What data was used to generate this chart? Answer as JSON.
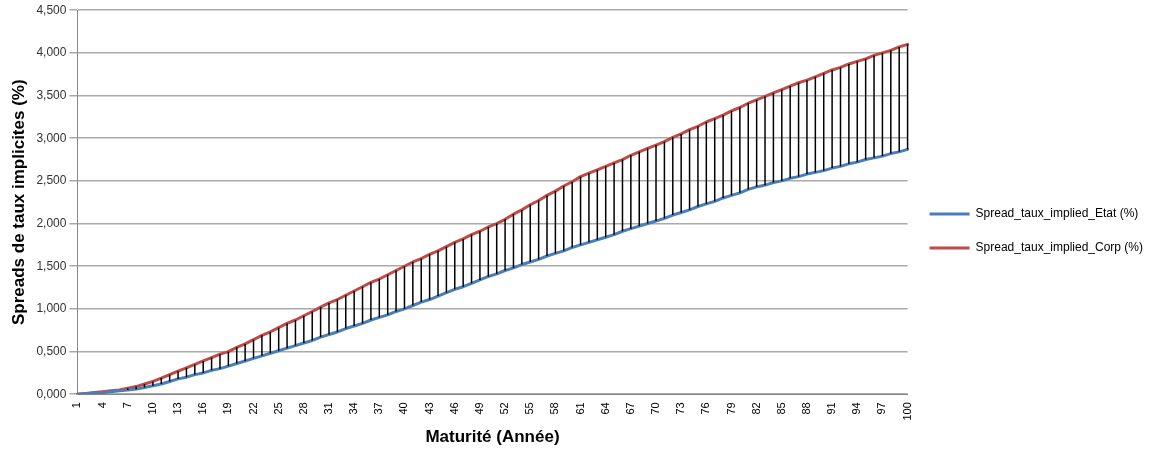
{
  "chart_data": {
    "type": "line",
    "xlabel": "Maturité (Année)",
    "ylabel": "Spreads de taux implicites (%)",
    "categories": [
      "1",
      null,
      null,
      "4",
      null,
      null,
      "7",
      null,
      null,
      "10",
      null,
      null,
      "13",
      null,
      null,
      "16",
      null,
      null,
      "19",
      null,
      null,
      "22",
      null,
      null,
      "25",
      null,
      null,
      "28",
      null,
      null,
      "31",
      null,
      null,
      "34",
      null,
      null,
      "37",
      null,
      null,
      "40",
      null,
      null,
      "43",
      null,
      null,
      "46",
      null,
      null,
      "49",
      null,
      null,
      "52",
      null,
      null,
      "55",
      null,
      null,
      "58",
      null,
      null,
      "61",
      null,
      null,
      "64",
      null,
      null,
      "67",
      null,
      null,
      "70",
      null,
      null,
      "73",
      null,
      null,
      "76",
      null,
      null,
      "79",
      null,
      null,
      "82",
      null,
      null,
      "85",
      null,
      null,
      "88",
      null,
      null,
      "91",
      null,
      null,
      "94",
      null,
      null,
      "97",
      null,
      null,
      "100"
    ],
    "series": [
      {
        "name": "Spread_taux_implied_Etat (%)",
        "color": "#4a7ebb",
        "values": [
          0,
          0.01,
          0.01,
          0.02,
          0.03,
          0.04,
          0.05,
          0.06,
          0.08,
          0.1,
          0.12,
          0.15,
          0.18,
          0.2,
          0.23,
          0.25,
          0.28,
          0.3,
          0.33,
          0.36,
          0.39,
          0.42,
          0.45,
          0.48,
          0.51,
          0.54,
          0.57,
          0.6,
          0.63,
          0.67,
          0.7,
          0.73,
          0.77,
          0.8,
          0.83,
          0.87,
          0.9,
          0.93,
          0.97,
          1.0,
          1.04,
          1.08,
          1.11,
          1.15,
          1.19,
          1.23,
          1.26,
          1.3,
          1.34,
          1.38,
          1.41,
          1.45,
          1.48,
          1.52,
          1.55,
          1.58,
          1.62,
          1.65,
          1.68,
          1.72,
          1.75,
          1.78,
          1.81,
          1.84,
          1.87,
          1.91,
          1.94,
          1.97,
          2.0,
          2.03,
          2.06,
          2.1,
          2.13,
          2.16,
          2.2,
          2.23,
          2.26,
          2.3,
          2.33,
          2.36,
          2.4,
          2.43,
          2.45,
          2.48,
          2.5,
          2.53,
          2.55,
          2.58,
          2.6,
          2.62,
          2.65,
          2.67,
          2.7,
          2.72,
          2.75,
          2.77,
          2.79,
          2.82,
          2.84,
          2.87
        ],
        "errors": [
          null,
          null,
          null,
          null,
          null,
          null,
          [
            0.05,
            0.07
          ],
          [
            0.06,
            0.09
          ],
          [
            0.08,
            0.12
          ],
          [
            0.1,
            0.15
          ],
          [
            0.12,
            0.19
          ],
          [
            0.15,
            0.23
          ],
          [
            0.18,
            0.27
          ],
          [
            0.2,
            0.31
          ],
          [
            0.23,
            0.35
          ],
          [
            0.25,
            0.39
          ],
          [
            0.28,
            0.43
          ],
          [
            0.3,
            0.47
          ],
          [
            0.33,
            0.5
          ],
          [
            0.36,
            0.55
          ],
          [
            0.39,
            0.59
          ],
          [
            0.42,
            0.64
          ],
          [
            0.45,
            0.69
          ],
          [
            0.48,
            0.73
          ],
          [
            0.51,
            0.78
          ],
          [
            0.54,
            0.83
          ],
          [
            0.57,
            0.87
          ],
          [
            0.6,
            0.92
          ],
          [
            0.63,
            0.97
          ],
          [
            0.67,
            1.02
          ],
          [
            0.7,
            1.07
          ],
          [
            0.73,
            1.11
          ],
          [
            0.77,
            1.16
          ],
          [
            0.8,
            1.21
          ],
          [
            0.83,
            1.26
          ],
          [
            0.87,
            1.31
          ],
          [
            0.9,
            1.35
          ],
          [
            0.93,
            1.4
          ],
          [
            0.97,
            1.45
          ],
          [
            1.0,
            1.5
          ],
          [
            1.04,
            1.55
          ],
          [
            1.08,
            1.59
          ],
          [
            1.11,
            1.64
          ],
          [
            1.15,
            1.68
          ],
          [
            1.19,
            1.73
          ],
          [
            1.23,
            1.78
          ],
          [
            1.26,
            1.82
          ],
          [
            1.3,
            1.87
          ],
          [
            1.34,
            1.91
          ],
          [
            1.38,
            1.96
          ],
          [
            1.41,
            2.0
          ],
          [
            1.45,
            2.05
          ],
          [
            1.48,
            2.11
          ],
          [
            1.52,
            2.16
          ],
          [
            1.55,
            2.22
          ],
          [
            1.58,
            2.27
          ],
          [
            1.62,
            2.33
          ],
          [
            1.65,
            2.38
          ],
          [
            1.68,
            2.44
          ],
          [
            1.72,
            2.49
          ],
          [
            1.75,
            2.55
          ],
          [
            1.78,
            2.59
          ],
          [
            1.81,
            2.63
          ],
          [
            1.84,
            2.67
          ],
          [
            1.87,
            2.71
          ],
          [
            1.91,
            2.75
          ],
          [
            1.94,
            2.8
          ],
          [
            1.97,
            2.84
          ],
          [
            2.0,
            2.88
          ],
          [
            2.03,
            2.92
          ],
          [
            2.06,
            2.96
          ],
          [
            2.1,
            3.01
          ],
          [
            2.13,
            3.05
          ],
          [
            2.16,
            3.1
          ],
          [
            2.2,
            3.14
          ],
          [
            2.23,
            3.19
          ],
          [
            2.26,
            3.23
          ],
          [
            2.3,
            3.27
          ],
          [
            2.33,
            3.32
          ],
          [
            2.36,
            3.36
          ],
          [
            2.4,
            3.41
          ],
          [
            2.43,
            3.45
          ],
          [
            2.45,
            3.49
          ],
          [
            2.48,
            3.53
          ],
          [
            2.5,
            3.57
          ],
          [
            2.53,
            3.61
          ],
          [
            2.55,
            3.65
          ],
          [
            2.58,
            3.68
          ],
          [
            2.6,
            3.72
          ],
          [
            2.62,
            3.76
          ],
          [
            2.65,
            3.8
          ],
          [
            2.67,
            3.83
          ],
          [
            2.7,
            3.87
          ],
          [
            2.72,
            3.9
          ],
          [
            2.75,
            3.93
          ],
          [
            2.77,
            3.97
          ],
          [
            2.79,
            4.0
          ],
          [
            2.82,
            4.03
          ],
          [
            2.84,
            4.07
          ],
          [
            2.87,
            4.1
          ]
        ]
      },
      {
        "name": "Spread_taux_implied_Corp (%)",
        "color": "#be4b48",
        "values": [
          0,
          0.01,
          0.02,
          0.03,
          0.04,
          0.05,
          0.07,
          0.09,
          0.12,
          0.15,
          0.19,
          0.23,
          0.27,
          0.31,
          0.35,
          0.39,
          0.43,
          0.47,
          0.5,
          0.55,
          0.59,
          0.64,
          0.69,
          0.73,
          0.78,
          0.83,
          0.87,
          0.92,
          0.97,
          1.02,
          1.07,
          1.11,
          1.16,
          1.21,
          1.26,
          1.31,
          1.35,
          1.4,
          1.45,
          1.5,
          1.55,
          1.59,
          1.64,
          1.68,
          1.73,
          1.78,
          1.82,
          1.87,
          1.91,
          1.96,
          2.0,
          2.05,
          2.11,
          2.16,
          2.22,
          2.27,
          2.33,
          2.38,
          2.44,
          2.49,
          2.55,
          2.59,
          2.63,
          2.67,
          2.71,
          2.75,
          2.8,
          2.84,
          2.88,
          2.92,
          2.96,
          3.01,
          3.05,
          3.1,
          3.14,
          3.19,
          3.23,
          3.27,
          3.32,
          3.36,
          3.41,
          3.45,
          3.49,
          3.53,
          3.57,
          3.61,
          3.65,
          3.68,
          3.72,
          3.76,
          3.8,
          3.83,
          3.87,
          3.9,
          3.93,
          3.97,
          4.0,
          4.03,
          4.07,
          4.1
        ]
      }
    ],
    "ylim": [
      0,
      4.5
    ],
    "yticks": [
      {
        "value": 0,
        "label": "0,000"
      },
      {
        "value": 0.5,
        "label": "0,500"
      },
      {
        "value": 1,
        "label": "1,000"
      },
      {
        "value": 1.5,
        "label": "1,500"
      },
      {
        "value": 2,
        "label": "2,000"
      },
      {
        "value": 2.5,
        "label": "2,500"
      },
      {
        "value": 3,
        "label": "3,000"
      },
      {
        "value": 3.5,
        "label": "3,500"
      },
      {
        "value": 4,
        "label": "4,000"
      },
      {
        "value": 4.5,
        "label": "4,500"
      }
    ],
    "grid": "y",
    "legend": "right",
    "marker": "none",
    "line_style": "solid"
  }
}
